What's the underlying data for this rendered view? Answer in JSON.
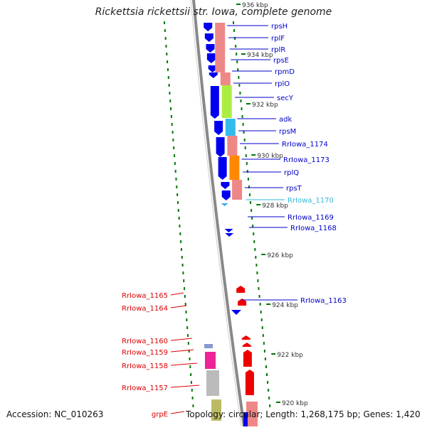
{
  "title": "Rickettsia rickettsii str. Iowa, complete genome",
  "footer": {
    "accession": "Accession: NC_010263",
    "topology": "Topology: circular; Length: 1,268,175 bp; Genes: 1,420"
  },
  "colors": {
    "forward_cds": "#0000ee",
    "reverse_cds": "#ee0000",
    "tick": "#007700",
    "backbone": "#888888"
  },
  "kbp_labels": [
    "936 kbp",
    "934 kbp",
    "932 kbp",
    "930 kbp",
    "928 kbp",
    "926 kbp",
    "924 kbp",
    "922 kbp",
    "920 kbp"
  ],
  "right_genes": [
    {
      "name": "rpsH",
      "color": "#0000cc"
    },
    {
      "name": "rplF",
      "color": "#0000cc"
    },
    {
      "name": "rplR",
      "color": "#0000cc"
    },
    {
      "name": "rpsE",
      "color": "#0000cc"
    },
    {
      "name": "rpmD",
      "color": "#0000cc"
    },
    {
      "name": "rplO",
      "color": "#0000cc"
    },
    {
      "name": "secY",
      "color": "#0000cc"
    },
    {
      "name": "adk",
      "color": "#0000cc"
    },
    {
      "name": "rpsM",
      "color": "#0000cc"
    },
    {
      "name": "RrIowa_1174",
      "color": "#0000cc"
    },
    {
      "name": "RrIowa_1173",
      "color": "#0000cc"
    },
    {
      "name": "rplQ",
      "color": "#0000cc"
    },
    {
      "name": "rpsT",
      "color": "#0000cc"
    },
    {
      "name": "RrIowa_1170",
      "color": "#33bbdd"
    },
    {
      "name": "RrIowa_1169",
      "color": "#0000cc"
    },
    {
      "name": "RrIowa_1168",
      "color": "#0000cc"
    },
    {
      "name": "RrIowa_1163",
      "color": "#0000cc"
    }
  ],
  "left_genes": [
    {
      "name": "RrIowa_1165",
      "color": "#dd0000"
    },
    {
      "name": "RrIowa_1164",
      "color": "#dd0000"
    },
    {
      "name": "RrIowa_1160",
      "color": "#dd0000"
    },
    {
      "name": "RrIowa_1159",
      "color": "#dd0000"
    },
    {
      "name": "RrIowa_1158",
      "color": "#dd0000"
    },
    {
      "name": "RrIowa_1157",
      "color": "#dd0000"
    },
    {
      "name": "grpE",
      "color": "#dd0000"
    }
  ]
}
